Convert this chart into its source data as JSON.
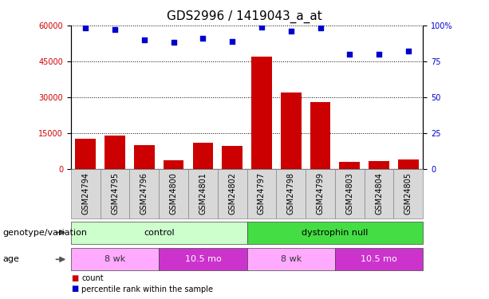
{
  "title": "GDS2996 / 1419043_a_at",
  "samples": [
    "GSM24794",
    "GSM24795",
    "GSM24796",
    "GSM24800",
    "GSM24801",
    "GSM24802",
    "GSM24797",
    "GSM24798",
    "GSM24799",
    "GSM24803",
    "GSM24804",
    "GSM24805"
  ],
  "counts": [
    12500,
    14000,
    10000,
    3500,
    11000,
    9500,
    47000,
    32000,
    28000,
    3000,
    3200,
    3800
  ],
  "percentiles": [
    98,
    97,
    90,
    88,
    91,
    89,
    99,
    96,
    98,
    80,
    80,
    82
  ],
  "ylim_left": [
    0,
    60000
  ],
  "ylim_right": [
    0,
    100
  ],
  "yticks_left": [
    0,
    15000,
    30000,
    45000,
    60000
  ],
  "yticks_right": [
    0,
    25,
    50,
    75,
    100
  ],
  "ytick_labels_left": [
    "0",
    "15000",
    "30000",
    "45000",
    "60000"
  ],
  "ytick_labels_right": [
    "0",
    "25",
    "50",
    "75",
    "100%"
  ],
  "bar_color": "#cc0000",
  "scatter_color": "#0000cc",
  "genotype_groups": [
    {
      "label": "control",
      "start": 0,
      "end": 6,
      "color": "#ccffcc"
    },
    {
      "label": "dystrophin null",
      "start": 6,
      "end": 12,
      "color": "#44dd44"
    }
  ],
  "age_groups": [
    {
      "label": "8 wk",
      "start": 0,
      "end": 3,
      "color": "#ffaaff"
    },
    {
      "label": "10.5 mo",
      "start": 3,
      "end": 6,
      "color": "#cc33cc"
    },
    {
      "label": "8 wk",
      "start": 6,
      "end": 9,
      "color": "#ffaaff"
    },
    {
      "label": "10.5 mo",
      "start": 9,
      "end": 12,
      "color": "#cc33cc"
    }
  ],
  "legend_items": [
    {
      "label": "count",
      "color": "#cc0000"
    },
    {
      "label": "percentile rank within the sample",
      "color": "#0000cc"
    }
  ],
  "title_fontsize": 11,
  "tick_fontsize": 7,
  "annotation_fontsize": 8,
  "label_fontsize": 8
}
